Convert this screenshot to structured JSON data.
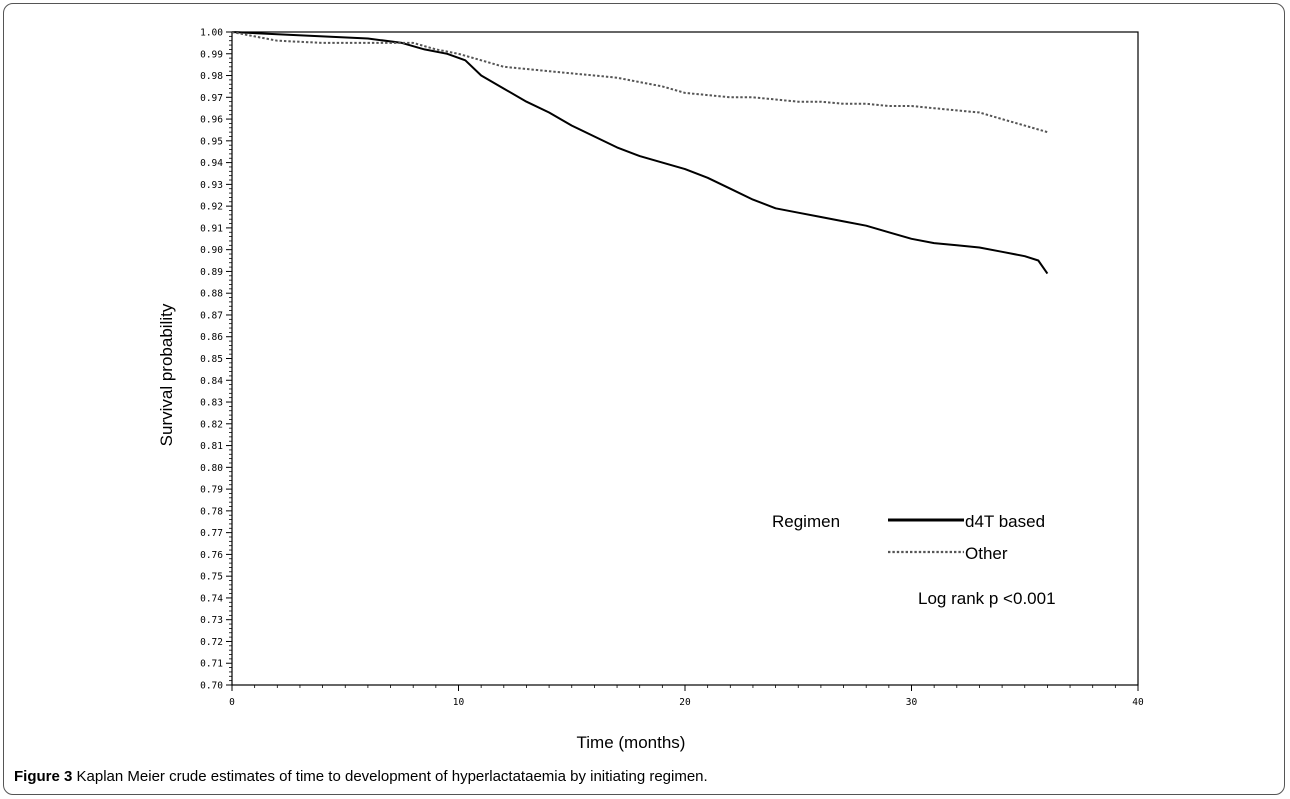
{
  "figure": {
    "label": "Figure 3",
    "caption": "Kaplan Meier crude estimates of time to development of hyperlactataemia by initiating regimen"
  },
  "chart_data": {
    "type": "line",
    "xlabel": "Time (months)",
    "ylabel": "Survival probability",
    "xlim": [
      0,
      40
    ],
    "ylim": [
      0.7,
      1.0
    ],
    "x_ticks": [
      0,
      10,
      20,
      30,
      40
    ],
    "y_ticks": [
      0.7,
      0.71,
      0.72,
      0.73,
      0.74,
      0.75,
      0.76,
      0.77,
      0.78,
      0.79,
      0.8,
      0.81,
      0.82,
      0.83,
      0.84,
      0.85,
      0.86,
      0.87,
      0.88,
      0.89,
      0.9,
      0.91,
      0.92,
      0.93,
      0.94,
      0.95,
      0.96,
      0.97,
      0.98,
      0.99,
      1.0
    ],
    "legend_title": "Regimen",
    "annotation": "Log rank p <0.001",
    "series": [
      {
        "name": "d4T based",
        "style": "solid",
        "color": "#000000",
        "x": [
          0,
          2,
          4,
          6,
          7.5,
          8.5,
          9.5,
          10.3,
          11,
          12,
          13,
          14,
          15,
          16,
          17,
          18,
          19,
          20,
          21,
          22,
          23,
          24,
          25,
          26,
          27,
          28,
          29,
          30,
          31,
          32,
          33,
          34,
          35,
          35.6,
          36
        ],
        "y": [
          1.0,
          0.999,
          0.998,
          0.997,
          0.995,
          0.992,
          0.99,
          0.987,
          0.98,
          0.974,
          0.968,
          0.963,
          0.957,
          0.952,
          0.947,
          0.943,
          0.94,
          0.937,
          0.933,
          0.928,
          0.923,
          0.919,
          0.917,
          0.915,
          0.913,
          0.911,
          0.908,
          0.905,
          0.903,
          0.902,
          0.901,
          0.899,
          0.897,
          0.895,
          0.889
        ]
      },
      {
        "name": "Other",
        "style": "dotted",
        "color": "#555555",
        "x": [
          0,
          1,
          2,
          4,
          6,
          7,
          8,
          9,
          10,
          11,
          12,
          13,
          14,
          15,
          16,
          17,
          18,
          19,
          20,
          21,
          22,
          23,
          24,
          25,
          26,
          27,
          28,
          29,
          30,
          31,
          32,
          33,
          34,
          35,
          36
        ],
        "y": [
          1.0,
          0.998,
          0.996,
          0.995,
          0.995,
          0.995,
          0.995,
          0.992,
          0.99,
          0.987,
          0.984,
          0.983,
          0.982,
          0.981,
          0.98,
          0.979,
          0.977,
          0.975,
          0.972,
          0.971,
          0.97,
          0.97,
          0.969,
          0.968,
          0.968,
          0.967,
          0.967,
          0.966,
          0.966,
          0.965,
          0.964,
          0.963,
          0.96,
          0.957,
          0.954
        ]
      }
    ]
  }
}
